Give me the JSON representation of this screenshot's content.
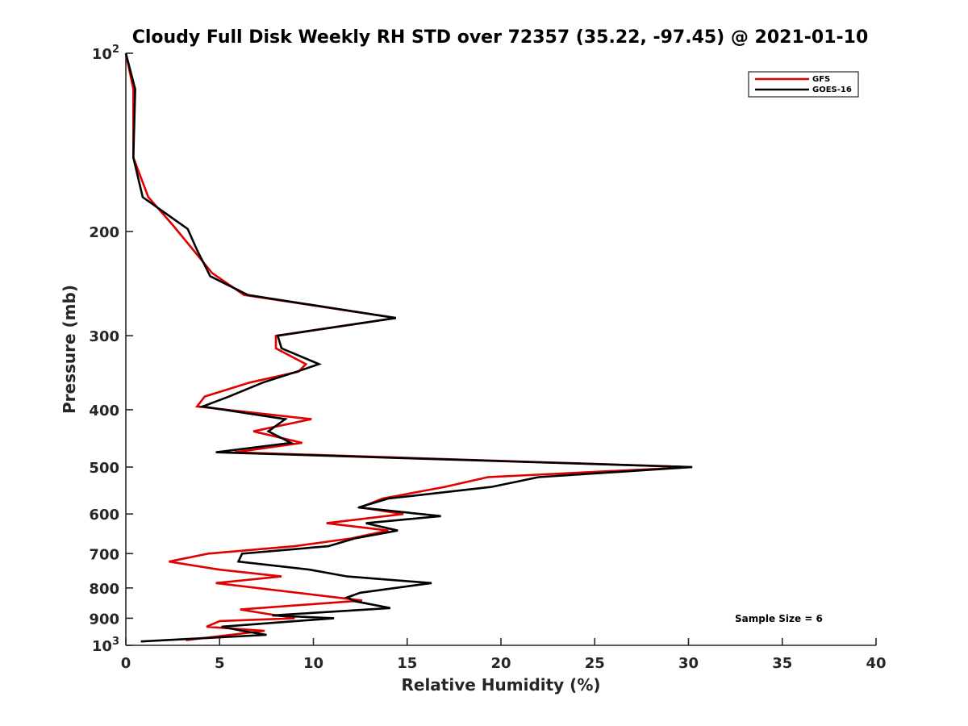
{
  "chart_data": {
    "type": "line",
    "title": "Cloudy Full Disk Weekly RH STD over 72357 (35.22, -97.45) @ 2021-01-10",
    "xlabel": "Relative Humidity (%)",
    "ylabel": "Pressure (mb)",
    "xlim": [
      0,
      40
    ],
    "ylim": [
      100,
      1000
    ],
    "y_scale": "log",
    "y_reversed": true,
    "x_ticks": [
      "0",
      "5",
      "10",
      "15",
      "20",
      "25",
      "30",
      "35",
      "40"
    ],
    "x_tick_values": [
      0,
      5,
      10,
      15,
      20,
      25,
      30,
      35,
      40
    ],
    "y_ticks": [
      {
        "value": 100,
        "base": "10",
        "exp": "2"
      },
      {
        "value": 200,
        "label": "200"
      },
      {
        "value": 300,
        "label": "300"
      },
      {
        "value": 400,
        "label": "400"
      },
      {
        "value": 500,
        "label": "500"
      },
      {
        "value": 600,
        "label": "600"
      },
      {
        "value": 700,
        "label": "700"
      },
      {
        "value": 800,
        "label": "800"
      },
      {
        "value": 900,
        "label": "900"
      },
      {
        "value": 1000,
        "base": "10",
        "exp": "3"
      }
    ],
    "grid": false,
    "legend_position": "top-right",
    "annotation": "Sample Size = 6",
    "series": [
      {
        "name": "GFS",
        "color": "#e00000",
        "points": [
          [
            0.0,
            100
          ],
          [
            0.4,
            115
          ],
          [
            0.4,
            150
          ],
          [
            1.2,
            175
          ],
          [
            2.5,
            195
          ],
          [
            3.6,
            215
          ],
          [
            4.6,
            235
          ],
          [
            6.3,
            256
          ],
          [
            14.4,
            280
          ],
          [
            8.0,
            300
          ],
          [
            8.0,
            315
          ],
          [
            9.6,
            335
          ],
          [
            9.2,
            345
          ],
          [
            6.6,
            360
          ],
          [
            4.2,
            380
          ],
          [
            3.8,
            395
          ],
          [
            9.9,
            415
          ],
          [
            6.8,
            435
          ],
          [
            9.4,
            455
          ],
          [
            5.8,
            472
          ],
          [
            30.2,
            500
          ],
          [
            19.3,
            520
          ],
          [
            17.0,
            540
          ],
          [
            13.7,
            565
          ],
          [
            12.5,
            585
          ],
          [
            14.8,
            600
          ],
          [
            10.7,
            622
          ],
          [
            14.0,
            640
          ],
          [
            12.0,
            660
          ],
          [
            9.0,
            680
          ],
          [
            4.4,
            700
          ],
          [
            2.3,
            722
          ],
          [
            5.0,
            745
          ],
          [
            8.3,
            765
          ],
          [
            4.8,
            785
          ],
          [
            12.6,
            840
          ],
          [
            6.1,
            870
          ],
          [
            9.0,
            900
          ],
          [
            5.0,
            910
          ],
          [
            4.3,
            930
          ],
          [
            7.4,
            945
          ],
          [
            3.2,
            980
          ]
        ]
      },
      {
        "name": "GOES-16",
        "color": "#000000",
        "points": [
          [
            0.0,
            100
          ],
          [
            0.5,
            115
          ],
          [
            0.4,
            150
          ],
          [
            0.9,
            175
          ],
          [
            3.3,
            198
          ],
          [
            3.8,
            215
          ],
          [
            4.5,
            238
          ],
          [
            6.5,
            256
          ],
          [
            14.4,
            280
          ],
          [
            8.1,
            300
          ],
          [
            8.3,
            315
          ],
          [
            10.3,
            335
          ],
          [
            9.1,
            345
          ],
          [
            7.3,
            360
          ],
          [
            5.5,
            380
          ],
          [
            4.1,
            395
          ],
          [
            8.5,
            415
          ],
          [
            7.6,
            435
          ],
          [
            8.8,
            455
          ],
          [
            4.8,
            472
          ],
          [
            30.2,
            500
          ],
          [
            22.0,
            520
          ],
          [
            19.5,
            540
          ],
          [
            14.0,
            565
          ],
          [
            12.4,
            585
          ],
          [
            16.8,
            605
          ],
          [
            12.8,
            622
          ],
          [
            14.5,
            640
          ],
          [
            12.2,
            660
          ],
          [
            10.8,
            680
          ],
          [
            6.2,
            700
          ],
          [
            6.0,
            722
          ],
          [
            9.8,
            745
          ],
          [
            11.8,
            765
          ],
          [
            16.3,
            785
          ],
          [
            12.5,
            815
          ],
          [
            11.8,
            830
          ],
          [
            12.2,
            842
          ],
          [
            14.1,
            865
          ],
          [
            7.8,
            890
          ],
          [
            11.1,
            900
          ],
          [
            5.1,
            930
          ],
          [
            6.2,
            945
          ],
          [
            7.5,
            960
          ],
          [
            0.8,
            985
          ]
        ]
      }
    ]
  }
}
